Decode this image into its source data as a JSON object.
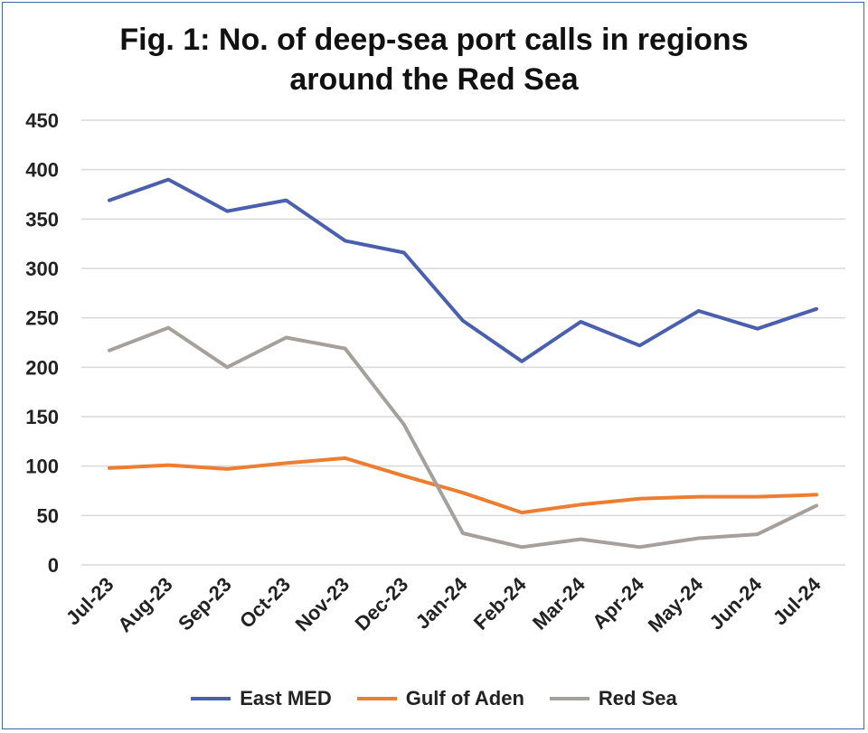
{
  "chart_data": {
    "type": "line",
    "title": "Fig. 1: No. of deep-sea  port calls in regions around the Red Sea",
    "title_lines": [
      "Fig. 1: No. of deep-sea  port calls in regions",
      "around the Red Sea"
    ],
    "xlabel": "",
    "ylabel": "",
    "ylim": [
      0,
      450
    ],
    "yticks": [
      "0",
      "50",
      "100",
      "150",
      "200",
      "250",
      "300",
      "350",
      "400",
      "450"
    ],
    "grid": true,
    "legend_position": "bottom",
    "categories": [
      "Jul-23",
      "Aug-23",
      "Sep-23",
      "Oct-23",
      "Nov-23",
      "Dec-23",
      "Jan-24",
      "Feb-24",
      "Mar-24",
      "Apr-24",
      "May-24",
      "Jun-24",
      "Jul-24"
    ],
    "series": [
      {
        "name": "East MED",
        "color": "#4a5fad",
        "values": [
          369,
          390,
          358,
          369,
          328,
          316,
          247,
          206,
          246,
          222,
          257,
          239,
          259
        ]
      },
      {
        "name": "Gulf of Aden",
        "color": "#ed7d31",
        "values": [
          98,
          101,
          97,
          103,
          108,
          90,
          73,
          53,
          61,
          67,
          69,
          69,
          71
        ]
      },
      {
        "name": "Red Sea",
        "color": "#a5a09b",
        "values": [
          217,
          240,
          200,
          230,
          219,
          142,
          32,
          18,
          26,
          18,
          27,
          31,
          60
        ]
      }
    ]
  }
}
